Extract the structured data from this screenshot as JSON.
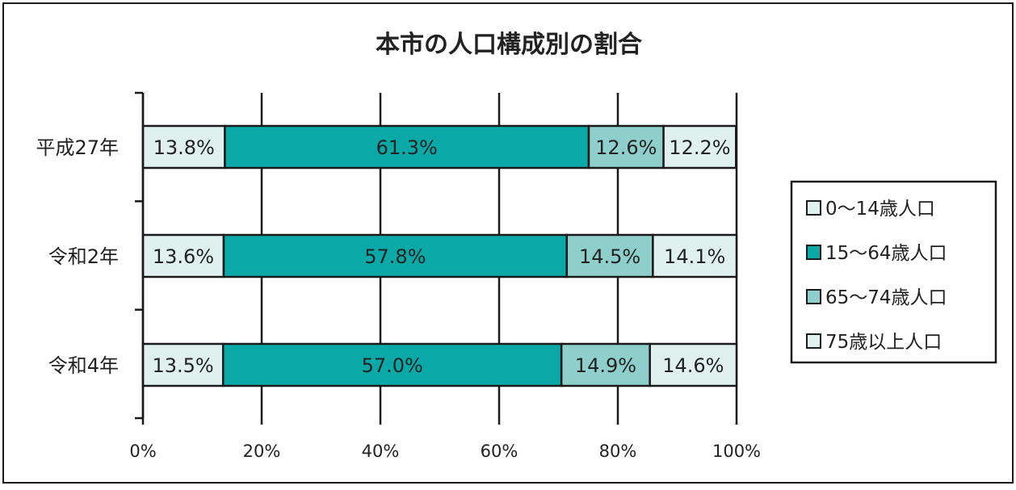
{
  "chart_data": {
    "type": "bar",
    "orientation": "horizontal",
    "stacked": "percent",
    "title": "本市の人口構成別の割合",
    "categories": [
      "平成27年",
      "令和2年",
      "令和4年"
    ],
    "series": [
      {
        "name": "0～14歳人口",
        "color": "#dff0ef",
        "values": [
          13.8,
          13.6,
          13.5
        ],
        "labels": [
          "13.8%",
          "13.6%",
          "13.5%"
        ]
      },
      {
        "name": "15～64歳人口",
        "color": "#0aa8a6",
        "values": [
          61.3,
          57.8,
          57.0
        ],
        "labels": [
          "61.3%",
          "57.8%",
          "57.0%"
        ]
      },
      {
        "name": "65～74歳人口",
        "color": "#8fcfcb",
        "values": [
          12.6,
          14.5,
          14.9
        ],
        "labels": [
          "12.6%",
          "14.5%",
          "14.9%"
        ]
      },
      {
        "name": "75歳以上人口",
        "color": "#dff0ef",
        "values": [
          12.2,
          14.1,
          14.6
        ],
        "labels": [
          "12.2%",
          "14.1%",
          "14.6%"
        ]
      }
    ],
    "xlim": [
      0,
      100
    ],
    "x_ticks": [
      "0%",
      "20%",
      "40%",
      "60%",
      "80%",
      "100%"
    ],
    "grid": true,
    "legend_position": "right"
  }
}
